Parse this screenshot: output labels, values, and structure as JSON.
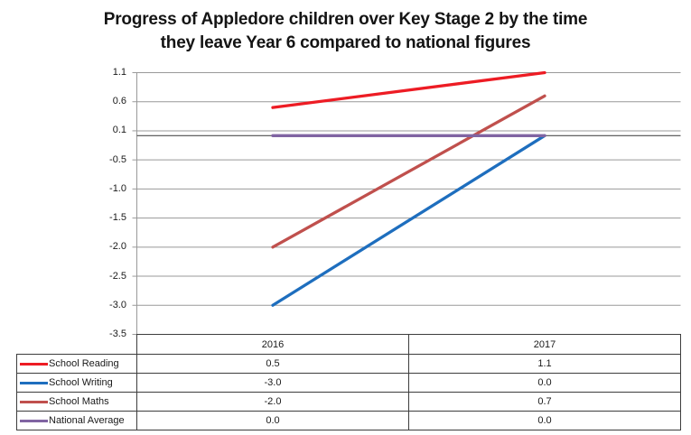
{
  "title": {
    "line1": "Progress of Appledore children over Key Stage 2 by the time",
    "line2": "they leave Year 6 compared to national figures"
  },
  "colors": {
    "gridline": "#999999",
    "zero_line": "#4d4d4d",
    "table_border": "#3d3d3d",
    "text": "#1a1a1a",
    "background": "#ffffff",
    "series_reading": "#ed1c24",
    "series_writing": "#1e6ebe",
    "series_maths": "#c0504d",
    "series_national": "#8064a2"
  },
  "chart_data": {
    "type": "line",
    "title": "Progress of Appledore children over Key Stage 2 by the time they leave Year 6 compared to national figures",
    "xlabel": "",
    "ylabel": "",
    "categories": [
      "2016",
      "2017"
    ],
    "series": [
      {
        "name": "School Reading",
        "color": "#ed1c24",
        "values": [
          0.5,
          1.1
        ],
        "display": [
          "0.5",
          "1.1"
        ]
      },
      {
        "name": "School Writing",
        "color": "#1e6ebe",
        "values": [
          -3.0,
          0.0
        ],
        "display": [
          "-3.0",
          "0.0"
        ]
      },
      {
        "name": "School Maths",
        "color": "#c0504d",
        "values": [
          -2.0,
          0.7
        ],
        "display": [
          "-2.0",
          "0.7"
        ]
      },
      {
        "name": "National Average",
        "color": "#8064a2",
        "values": [
          0.0,
          0.0
        ],
        "display": [
          "0.0",
          "0.0"
        ]
      }
    ],
    "y_ticks": [
      1.1,
      0.6,
      0.1,
      -0.5,
      -1.0,
      -1.5,
      -2.0,
      -2.5,
      -3.0,
      -3.5
    ],
    "y_tick_labels": [
      "1.1",
      "0.6",
      "0.1",
      "-0.5",
      "-1.0",
      "-1.5",
      "-2.0",
      "-2.5",
      "-3.0",
      "-3.5"
    ],
    "zero_line": 0.0,
    "grid": true,
    "legend_position": "data-table-left",
    "data_table_shown": true
  }
}
